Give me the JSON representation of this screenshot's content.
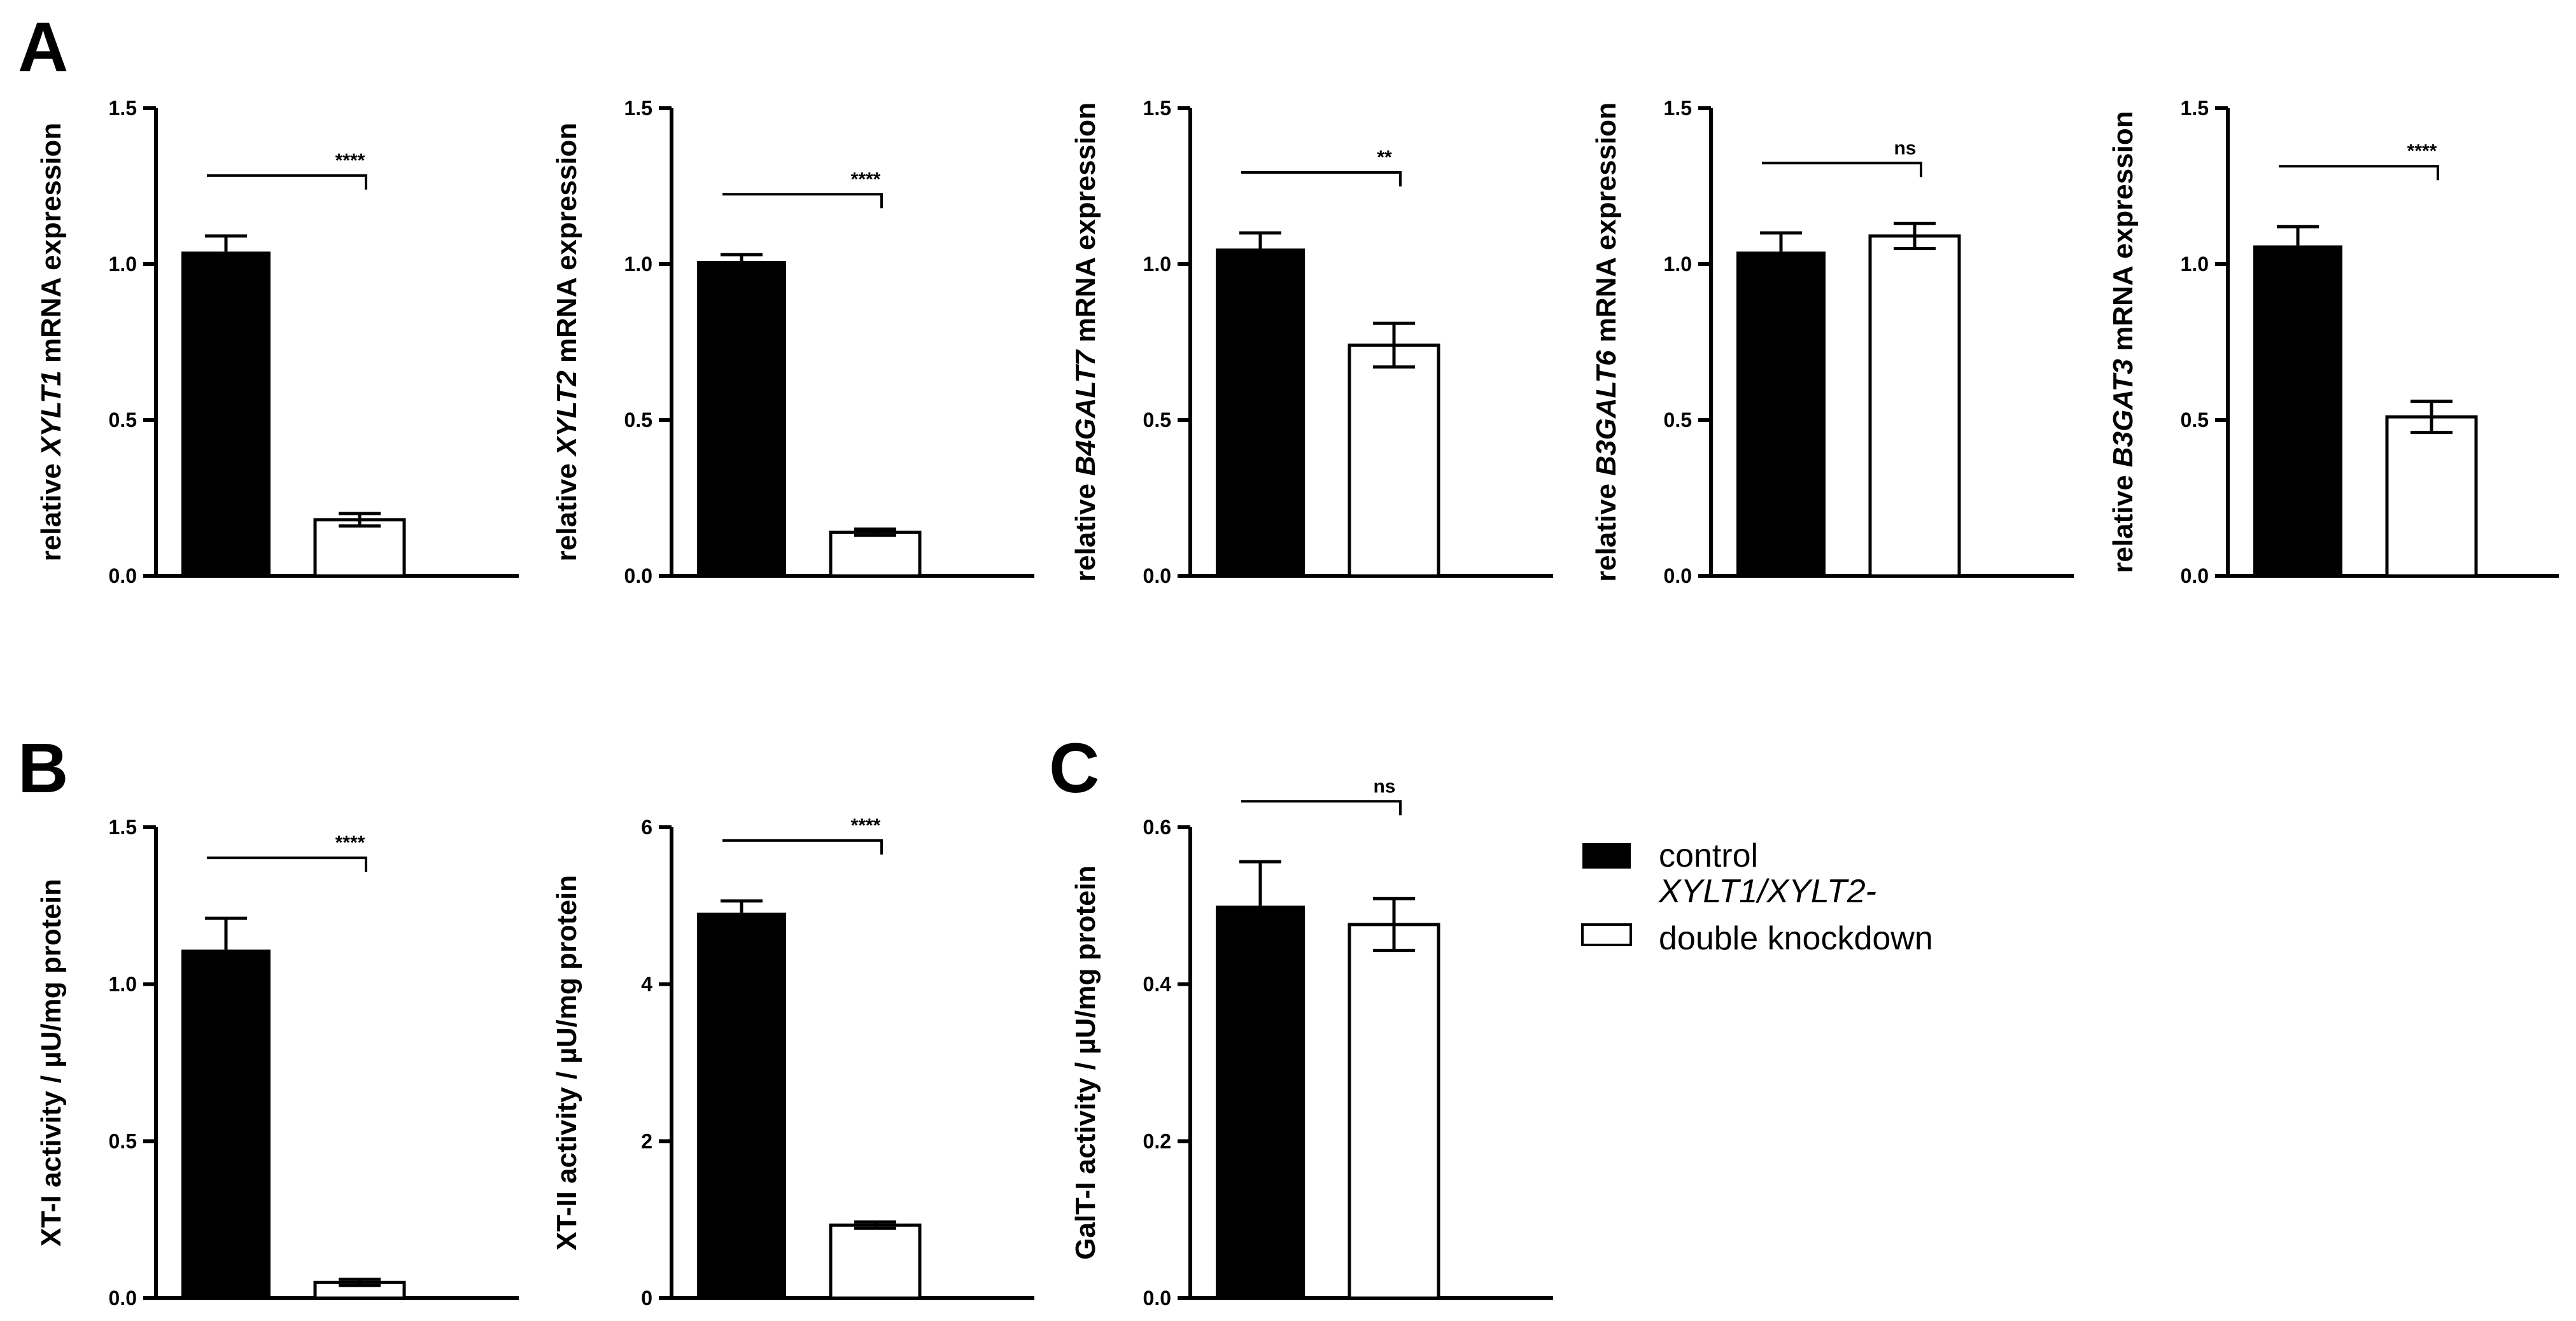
{
  "colors": {
    "control": "#000000",
    "knockdown": "#ffffff",
    "stroke": "#000000"
  },
  "legend": {
    "items": [
      {
        "key": "control",
        "label": "control",
        "lines": [
          "control"
        ],
        "italic_lines": []
      },
      {
        "key": "knockdown",
        "label": "XYLT1/XYLT2-double knockdown",
        "lines": [
          "XYLT1/XYLT2-",
          "double knockdown"
        ],
        "italic_lines": [
          "XYLT1/XYLT2-"
        ]
      }
    ]
  },
  "chart_data": [
    {
      "panel": "A",
      "type": "bar",
      "categories": [
        "control",
        "XYLT1/XYLT2-double knockdown"
      ],
      "values": [
        1.04,
        0.18
      ],
      "errors": [
        0.05,
        0.02
      ],
      "ylim": [
        0,
        1.5
      ],
      "yticks": [
        "0.0",
        "0.5",
        "1.0",
        "1.5"
      ],
      "ylabel_parts": [
        "relative ",
        "XYLT1",
        " mRNA expression"
      ],
      "ylabel": "relative XYLT1 mRNA expression",
      "significance": "****"
    },
    {
      "panel": "",
      "type": "bar",
      "categories": [
        "control",
        "XYLT1/XYLT2-double knockdown"
      ],
      "values": [
        1.01,
        0.14
      ],
      "errors": [
        0.02,
        0.01
      ],
      "ylim": [
        0,
        1.5
      ],
      "yticks": [
        "0.0",
        "0.5",
        "1.0",
        "1.5"
      ],
      "ylabel_parts": [
        "relative ",
        "XYLT2",
        " mRNA expression"
      ],
      "ylabel": "relative XYLT2 mRNA expression",
      "significance": "****"
    },
    {
      "panel": "",
      "type": "bar",
      "categories": [
        "control",
        "XYLT1/XYLT2-double knockdown"
      ],
      "values": [
        1.05,
        0.74
      ],
      "errors": [
        0.05,
        0.07
      ],
      "ylim": [
        0,
        1.5
      ],
      "yticks": [
        "0.0",
        "0.5",
        "1.0",
        "1.5"
      ],
      "ylabel_parts": [
        "relative ",
        "B4GALT7",
        " mRNA expression"
      ],
      "ylabel": "relative B4GALT7 mRNA expression",
      "significance": "**"
    },
    {
      "panel": "",
      "type": "bar",
      "categories": [
        "control",
        "XYLT1/XYLT2-double knockdown"
      ],
      "values": [
        1.04,
        1.09
      ],
      "errors": [
        0.06,
        0.04
      ],
      "ylim": [
        0,
        1.5
      ],
      "yticks": [
        "0.0",
        "0.5",
        "1.0",
        "1.5"
      ],
      "ylabel_parts": [
        "relative ",
        "B3GALT6",
        " mRNA expression"
      ],
      "ylabel": "relative B3GALT6 mRNA expression",
      "significance": "ns"
    },
    {
      "panel": "",
      "type": "bar",
      "categories": [
        "control",
        "XYLT1/XYLT2-double knockdown"
      ],
      "values": [
        1.06,
        0.51
      ],
      "errors": [
        0.06,
        0.05
      ],
      "ylim": [
        0,
        1.5
      ],
      "yticks": [
        "0.0",
        "0.5",
        "1.0",
        "1.5"
      ],
      "ylabel_parts": [
        "relative ",
        "B3GAT3",
        " mRNA expression"
      ],
      "ylabel": "relative B3GAT3 mRNA expression",
      "significance": "****"
    },
    {
      "panel": "B",
      "type": "bar",
      "categories": [
        "control",
        "XYLT1/XYLT2-double knockdown"
      ],
      "values": [
        1.11,
        0.05
      ],
      "errors": [
        0.1,
        0.01
      ],
      "ylim": [
        0,
        1.5
      ],
      "yticks": [
        "0.0",
        "0.5",
        "1.0",
        "1.5"
      ],
      "ylabel_parts": [
        "XT-I activity / µU/mg protein"
      ],
      "ylabel": "XT-I activity / µU/mg protein",
      "significance": "****"
    },
    {
      "panel": "",
      "type": "bar",
      "categories": [
        "control",
        "XYLT1/XYLT2-double knockdown"
      ],
      "values": [
        4.91,
        0.93
      ],
      "errors": [
        0.15,
        0.04
      ],
      "ylim": [
        0,
        6
      ],
      "yticks": [
        "0",
        "2",
        "4",
        "6"
      ],
      "ylabel_parts": [
        "XT-II activity / µU/mg protein"
      ],
      "ylabel": "XT-II activity / µU/mg protein",
      "significance": "****"
    },
    {
      "panel": "C",
      "type": "bar",
      "categories": [
        "control",
        "XYLT1/XYLT2-double knockdown"
      ],
      "values": [
        0.5,
        0.476
      ],
      "errors": [
        0.056,
        0.033
      ],
      "ylim": [
        0,
        0.6
      ],
      "yticks": [
        "0.0",
        "0.2",
        "0.4",
        "0.6"
      ],
      "ylabel_parts": [
        "GalT-I activity / µU/mg protein"
      ],
      "ylabel": "GalT-I activity / µU/mg protein",
      "significance": "ns"
    }
  ]
}
